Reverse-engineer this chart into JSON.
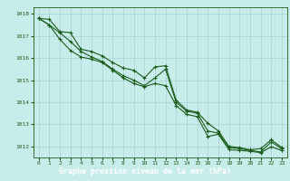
{
  "x": [
    0,
    1,
    2,
    3,
    4,
    5,
    6,
    7,
    8,
    9,
    10,
    11,
    12,
    13,
    14,
    15,
    16,
    17,
    18,
    19,
    20,
    21,
    22,
    23
  ],
  "series": [
    [
      1017.8,
      1017.75,
      1017.2,
      1017.15,
      1016.4,
      1016.3,
      1016.1,
      1015.8,
      1015.55,
      1015.45,
      1015.1,
      1015.6,
      1015.65,
      1014.1,
      1013.65,
      1013.55,
      1013.05,
      1012.7,
      1012.0,
      1011.95,
      1011.85,
      1011.9,
      1012.3,
      1011.95
    ],
    [
      1017.8,
      1017.5,
      1017.15,
      1016.75,
      1016.3,
      1016.05,
      1015.85,
      1015.5,
      1015.2,
      1015.0,
      1014.75,
      1015.1,
      1015.5,
      1014.0,
      1013.6,
      1013.5,
      1012.7,
      1012.6,
      1011.95,
      1011.9,
      1011.82,
      1011.75,
      1012.2,
      1011.9
    ],
    [
      1017.8,
      1017.5,
      1016.85,
      1016.35,
      1016.05,
      1015.95,
      1015.8,
      1015.45,
      1015.1,
      1014.85,
      1014.7,
      1014.85,
      1014.75,
      1013.85,
      1013.45,
      1013.35,
      1012.45,
      1012.55,
      1011.85,
      1011.82,
      1011.78,
      1011.72,
      1011.98,
      1011.82
    ]
  ],
  "ylim": [
    1011.5,
    1018.3
  ],
  "yticks": [
    1012,
    1013,
    1014,
    1015,
    1016,
    1017,
    1018
  ],
  "xticks": [
    0,
    1,
    2,
    3,
    4,
    5,
    6,
    7,
    8,
    9,
    10,
    11,
    12,
    13,
    14,
    15,
    16,
    17,
    18,
    19,
    20,
    21,
    22,
    23
  ],
  "line_color": "#1a5c1a",
  "marker": "+",
  "markersize": 3.5,
  "linewidth": 0.8,
  "xlabel": "Graphe pression niveau de la mer (hPa)",
  "bg_color": "#c8ecea",
  "grid_color": "#9ecfcf",
  "text_color": "#1a5c1a",
  "xlabel_bg": "#1a5c1a"
}
